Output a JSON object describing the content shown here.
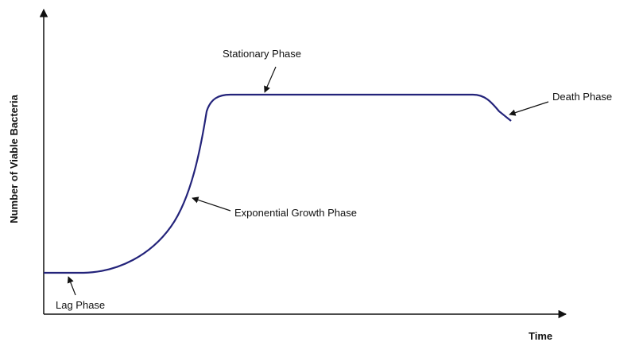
{
  "axes": {
    "y_label": "Number of Viable Bacteria",
    "x_label": "Time"
  },
  "phases": [
    {
      "label": "Lag Phase"
    },
    {
      "label": "Exponential Growth Phase"
    },
    {
      "label": "Stationary Phase"
    },
    {
      "label": "Death Phase"
    }
  ]
}
